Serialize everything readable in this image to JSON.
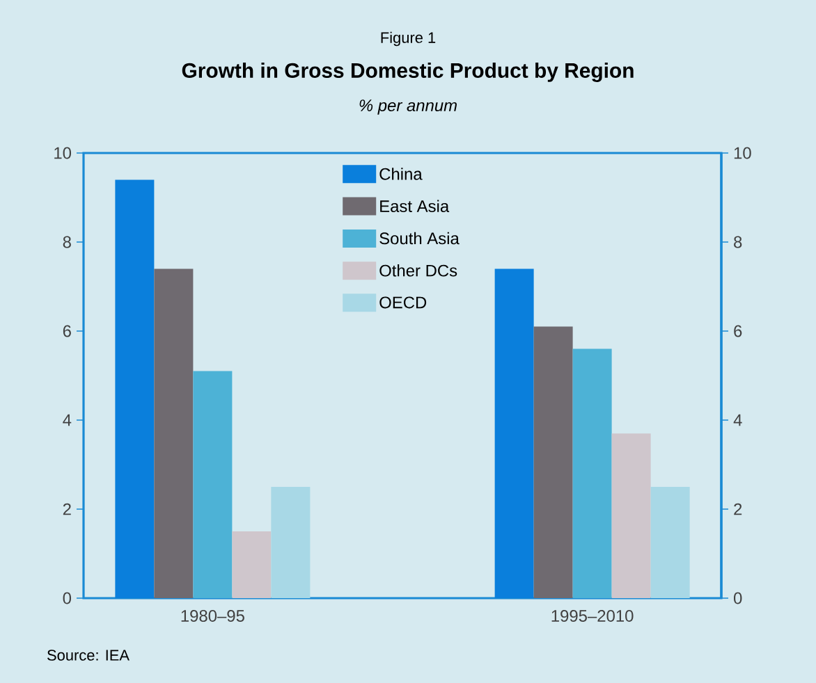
{
  "chart_data": {
    "type": "bar",
    "title": "Growth in Gross Domestic Product by Region",
    "subtitle": "% per annum",
    "annotations": [
      "Figure 1",
      "Source: IEA"
    ],
    "categories": [
      "1980–95",
      "1995–2010"
    ],
    "series": [
      {
        "name": "China",
        "color": "#0a7fdc",
        "values": [
          9.4,
          7.4
        ]
      },
      {
        "name": "East Asia",
        "color": "#6f6a70",
        "values": [
          7.4,
          6.1
        ]
      },
      {
        "name": "South Asia",
        "color": "#4db2d6",
        "values": [
          5.1,
          5.6
        ]
      },
      {
        "name": "Other DCs",
        "color": "#cfc6cc",
        "values": [
          1.5,
          3.7
        ]
      },
      {
        "name": "OECD",
        "color": "#a8d8e6",
        "values": [
          2.5,
          2.5
        ]
      }
    ],
    "ylim": [
      0,
      10
    ],
    "yticks": [
      0,
      2,
      4,
      6,
      8,
      10
    ],
    "y2lim": [
      0,
      10
    ],
    "y2ticks": [
      0,
      2,
      4,
      6,
      8,
      10
    ],
    "legend": "top",
    "grid": false
  }
}
